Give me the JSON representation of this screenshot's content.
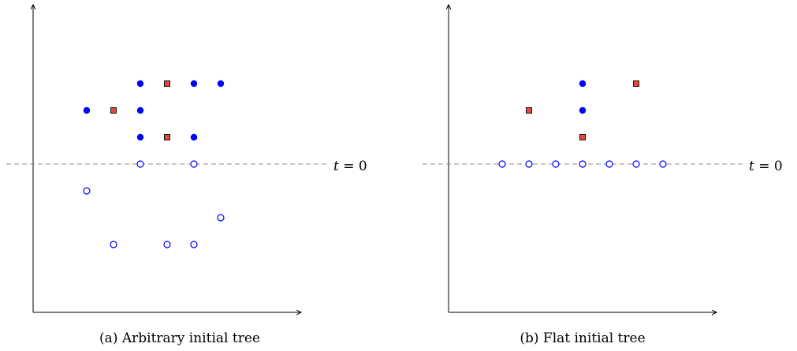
{
  "panels": [
    {
      "caption": "(a) Arbitrary initial tree",
      "threshold_label": "t = 0",
      "threshold_var": "t",
      "threshold_rest": " = 0",
      "filled_dots": [
        [
          1,
          2
        ],
        [
          3,
          2
        ],
        [
          4,
          2
        ],
        [
          -1,
          1
        ],
        [
          1,
          1
        ],
        [
          1,
          0
        ],
        [
          3,
          0
        ]
      ],
      "squares": [
        [
          2,
          2
        ],
        [
          0,
          1
        ],
        [
          2,
          0
        ]
      ],
      "hollow_dots": [
        [
          1,
          -1
        ],
        [
          3,
          -1
        ],
        [
          -1,
          -2
        ],
        [
          4,
          -3
        ],
        [
          0,
          -4
        ],
        [
          2,
          -4
        ],
        [
          3,
          -4
        ]
      ]
    },
    {
      "caption": "(b) Flat initial tree",
      "threshold_label": "t = 0",
      "threshold_var": "t",
      "threshold_rest": " = 0",
      "filled_dots": [
        [
          2,
          2
        ],
        [
          2,
          1
        ]
      ],
      "squares": [
        [
          4,
          2
        ],
        [
          0,
          1
        ],
        [
          2,
          0
        ]
      ],
      "hollow_dots": [
        [
          -1,
          -1
        ],
        [
          0,
          -1
        ],
        [
          1,
          -1
        ],
        [
          2,
          -1
        ],
        [
          3,
          -1
        ],
        [
          4,
          -1
        ],
        [
          5,
          -1
        ]
      ]
    }
  ],
  "colors": {
    "filled": "#0000ff",
    "hollow": "#0000ff",
    "square_fill": "#e8473f",
    "square_stroke": "#000000",
    "axis": "#000000",
    "dashed": "#8c8c8c"
  }
}
